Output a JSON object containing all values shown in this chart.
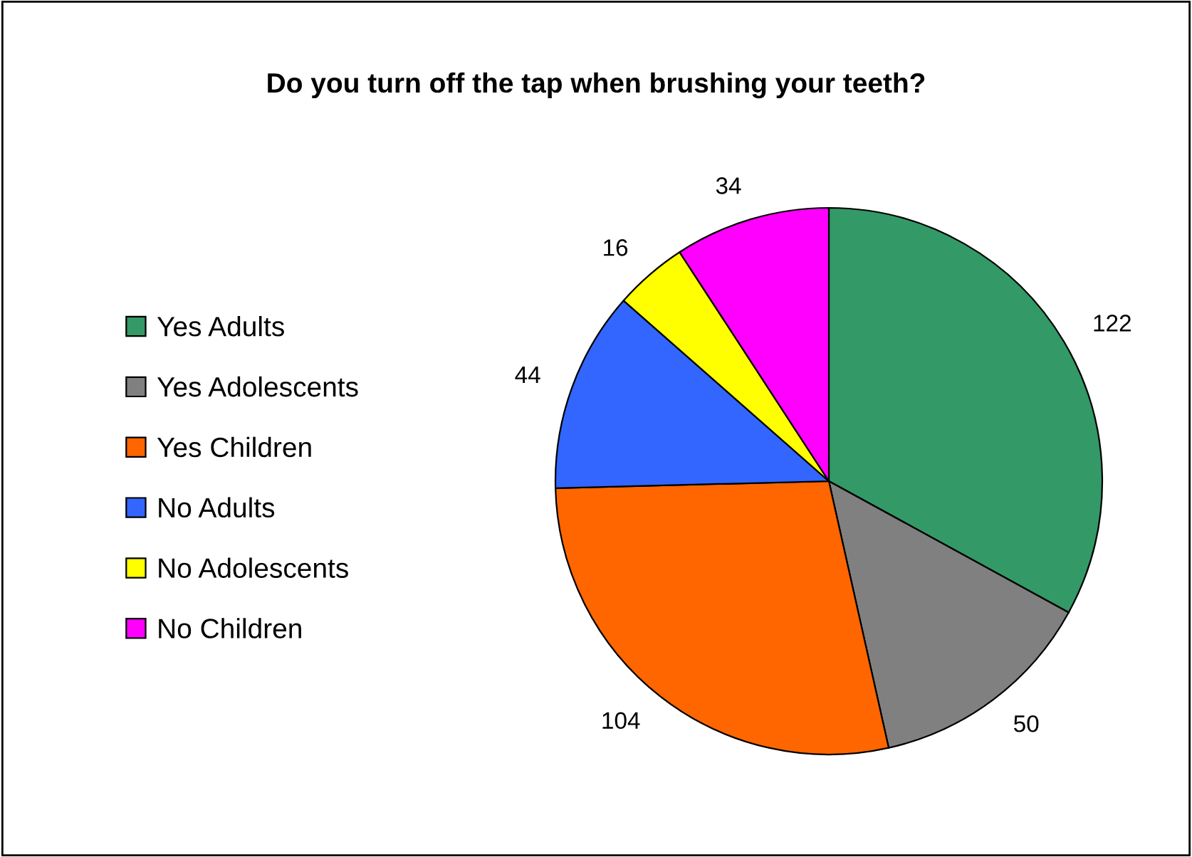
{
  "chart_data": {
    "type": "pie",
    "title": "Do you turn off the tap when brushing your teeth?",
    "categories": [
      "Yes Adults",
      "Yes Adolescents",
      "Yes Children",
      "No Adults",
      "No Adolescents",
      "No Children"
    ],
    "values": [
      122,
      50,
      104,
      44,
      16,
      34
    ],
    "colors": [
      "#339966",
      "#808080",
      "#ff6600",
      "#3366ff",
      "#ffff00",
      "#ff00ff"
    ],
    "legend": "left",
    "data_labels": true
  }
}
